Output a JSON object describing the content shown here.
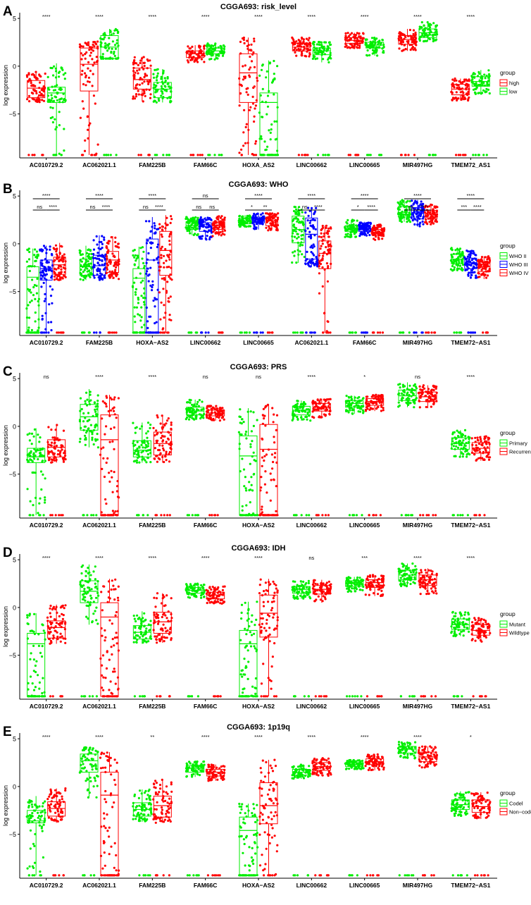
{
  "chart_data": [
    {
      "type": "box",
      "panel_letter": "A",
      "title": "CGGA693: risk_level",
      "ylabel": "log expression",
      "yticks": [
        5,
        0,
        -5
      ],
      "ylim": [
        -9.6,
        5.6
      ],
      "legend_title": "group",
      "groups": [
        {
          "name": "high",
          "color": "#ff0000"
        },
        {
          "name": "low",
          "color": "#00ee00"
        }
      ],
      "categories": [
        "AC010729.2",
        "AC062021.1",
        "FAM225B",
        "FAM66C",
        "HOXA_AS2",
        "LINC00662",
        "LINC00665",
        "MIR497HG",
        "TMEM72_AS1"
      ],
      "significance": [
        "****",
        "****",
        "****",
        "****",
        "****",
        "****",
        "****",
        "****",
        "****"
      ],
      "series": [
        {
          "name": "high",
          "stats": [
            [
              -3.8,
              -3.3,
              -2.3,
              -1.5,
              -0.6
            ],
            [
              -9.3,
              -2.6,
              0.2,
              1.9,
              2.6
            ],
            [
              -3.7,
              -2.4,
              -1.4,
              -0.2,
              1.0
            ],
            [
              0.4,
              0.9,
              1.3,
              1.6,
              2.2
            ],
            [
              -9.3,
              -3.8,
              -0.7,
              1.3,
              3.0
            ],
            [
              1.0,
              1.6,
              2.0,
              2.4,
              3.0
            ],
            [
              1.9,
              2.4,
              2.7,
              3.0,
              3.5
            ],
            [
              1.6,
              2.3,
              2.8,
              3.2,
              3.9
            ],
            [
              -3.6,
              -3.0,
              -2.4,
              -1.9,
              -1.3
            ]
          ]
        },
        {
          "name": "low",
          "stats": [
            [
              -9.3,
              -3.8,
              -2.8,
              -2.2,
              0.3
            ],
            [
              0.8,
              0.8,
              2.0,
              3.2,
              3.9
            ],
            [
              -3.8,
              -3.3,
              -2.4,
              -1.7,
              -0.3
            ],
            [
              0.7,
              1.3,
              1.6,
              1.9,
              2.4
            ],
            [
              -9.3,
              -9.3,
              -3.8,
              -2.8,
              0.6
            ],
            [
              0.4,
              1.2,
              1.6,
              1.9,
              2.6
            ],
            [
              1.1,
              1.9,
              2.2,
              2.5,
              3.0
            ],
            [
              2.6,
              3.0,
              3.5,
              3.9,
              4.6
            ],
            [
              -3.0,
              -2.1,
              -1.6,
              -1.1,
              -0.4
            ]
          ]
        }
      ]
    },
    {
      "type": "box",
      "panel_letter": "B",
      "title": "CGGA693: WHO",
      "ylabel": "log expression",
      "yticks": [
        5,
        0,
        -5
      ],
      "ylim": [
        -9.6,
        5.6
      ],
      "legend_title": "group",
      "groups": [
        {
          "name": "WHO II",
          "color": "#00ee00"
        },
        {
          "name": "WHO III",
          "color": "#0000ff"
        },
        {
          "name": "WHO IV",
          "color": "#ff0000"
        }
      ],
      "categories": [
        "AC010729.2",
        "FAM225B",
        "HOXA−AS2",
        "LINC00662",
        "LINC00665",
        "AC062021.1",
        "FAM66C",
        "MIR497HG",
        "TMEM72−AS1"
      ],
      "brackets": [
        {
          "ab": "ns",
          "bc": "****",
          "ac": "****"
        },
        {
          "ab": "ns",
          "bc": "****",
          "ac": "****"
        },
        {
          "ab": "ns",
          "bc": "****",
          "ac": "****"
        },
        {
          "ab": "ns",
          "bc": "ns",
          "ac": "ns"
        },
        {
          "ab": "*",
          "bc": "**",
          "ac": "****"
        },
        {
          "ab": "ns",
          "bc": "****",
          "ac": "****"
        },
        {
          "ab": "*",
          "bc": "****",
          "ac": "****"
        },
        {
          "ab": "ns",
          "bc": "****",
          "ac": "****"
        },
        {
          "ab": "***",
          "bc": "****",
          "ac": "****"
        }
      ],
      "series": [
        {
          "name": "WHO II",
          "stats": [
            [
              -9.3,
              -9.3,
              -3.5,
              -2.4,
              -0.5
            ],
            [
              -3.8,
              -3.3,
              -2.4,
              -1.6,
              -0.2
            ],
            [
              -9.3,
              -9.3,
              -3.6,
              -2.6,
              -0.3
            ],
            [
              0.9,
              1.5,
              1.9,
              2.3,
              2.8
            ],
            [
              1.8,
              2.1,
              2.4,
              2.7,
              3.0
            ],
            [
              -2.0,
              0.1,
              1.5,
              2.9,
              3.9
            ],
            [
              0.7,
              1.3,
              1.6,
              1.9,
              2.5
            ],
            [
              2.3,
              2.8,
              3.3,
              3.9,
              4.6
            ],
            [
              -2.8,
              -2.1,
              -1.6,
              -1.1,
              -0.4
            ]
          ]
        },
        {
          "name": "WHO III",
          "stats": [
            [
              -9.3,
              -3.8,
              -2.6,
              -1.7,
              -0.2
            ],
            [
              -3.8,
              -3.3,
              -2.3,
              -1.2,
              0.9
            ],
            [
              -9.3,
              -9.3,
              -1.7,
              0.5,
              2.8
            ],
            [
              0.4,
              1.3,
              1.8,
              2.2,
              2.8
            ],
            [
              1.5,
              2.2,
              2.5,
              2.8,
              3.2
            ],
            [
              -2.4,
              -1.6,
              1.0,
              2.7,
              3.8
            ],
            [
              0.8,
              1.3,
              1.6,
              1.9,
              2.3
            ],
            [
              1.8,
              2.6,
              3.2,
              3.8,
              4.6
            ],
            [
              -3.6,
              -2.6,
              -2.0,
              -1.5,
              -0.7
            ]
          ]
        },
        {
          "name": "WHO IV",
          "stats": [
            [
              -3.8,
              -3.2,
              -2.2,
              -1.4,
              0.1
            ],
            [
              -3.7,
              -3.0,
              -1.7,
              -0.8,
              0.8
            ],
            [
              -9.3,
              -3.3,
              -0.7,
              1.3,
              3.0
            ],
            [
              0.8,
              1.5,
              1.9,
              2.3,
              2.9
            ],
            [
              1.4,
              1.9,
              2.4,
              2.8,
              3.2
            ],
            [
              -9.3,
              -2.6,
              -1.0,
              0.3,
              1.9
            ],
            [
              0.4,
              0.9,
              1.2,
              1.5,
              2.0
            ],
            [
              2.0,
              2.6,
              3.1,
              3.5,
              4.1
            ],
            [
              -3.7,
              -2.9,
              -2.4,
              -1.9,
              -1.3
            ]
          ]
        }
      ]
    },
    {
      "type": "box",
      "panel_letter": "C",
      "title": "CGGA693: PRS",
      "ylabel": "log expression",
      "yticks": [
        5,
        0,
        -5
      ],
      "ylim": [
        -9.6,
        5.6
      ],
      "legend_title": "group",
      "groups": [
        {
          "name": "Primary",
          "color": "#00ee00"
        },
        {
          "name": "Recurrent",
          "color": "#ff0000"
        }
      ],
      "categories": [
        "AC010729.2",
        "AC062021.1",
        "FAM225B",
        "FAM66C",
        "HOXA−AS2",
        "LINC00662",
        "LINC00665",
        "MIR497HG",
        "TMEM72−AS1"
      ],
      "significance": [
        "ns",
        "****",
        "****",
        "ns",
        "ns",
        "****",
        "*",
        "ns",
        "****"
      ],
      "series": [
        {
          "name": "Primary",
          "stats": [
            [
              -9.3,
              -3.8,
              -3.2,
              -2.3,
              -0.2
            ],
            [
              -2.2,
              -0.4,
              1.0,
              2.3,
              3.9
            ],
            [
              -3.8,
              -3.2,
              -2.5,
              -1.5,
              0.4
            ],
            [
              0.7,
              1.2,
              1.6,
              2.0,
              2.8
            ],
            [
              -9.3,
              -9.3,
              -3.1,
              -1.0,
              1.9
            ],
            [
              0.6,
              1.2,
              1.7,
              2.1,
              2.7
            ],
            [
              1.3,
              2.0,
              2.4,
              2.7,
              3.2
            ],
            [
              2.0,
              2.7,
              3.2,
              3.8,
              4.6
            ],
            [
              -3.2,
              -2.4,
              -1.8,
              -1.2,
              -0.4
            ]
          ]
        },
        {
          "name": "Recurrent",
          "stats": [
            [
              -3.8,
              -3.2,
              -2.2,
              -1.4,
              0.2
            ],
            [
              -9.3,
              -9.3,
              -1.4,
              1.2,
              3.3
            ],
            [
              -3.8,
              -3.0,
              -1.8,
              -0.6,
              1.2
            ],
            [
              0.6,
              1.1,
              1.4,
              1.7,
              2.2
            ],
            [
              -9.3,
              -9.3,
              -2.4,
              0.2,
              2.3
            ],
            [
              0.9,
              1.6,
              2.0,
              2.4,
              2.9
            ],
            [
              1.6,
              2.2,
              2.6,
              2.9,
              3.3
            ],
            [
              1.9,
              2.6,
              3.1,
              3.6,
              4.3
            ],
            [
              -3.6,
              -2.8,
              -2.3,
              -1.7,
              -1.0
            ]
          ]
        }
      ]
    },
    {
      "type": "box",
      "panel_letter": "D",
      "title": "CGGA693: IDH",
      "ylabel": "log expression",
      "yticks": [
        5,
        0,
        -5
      ],
      "ylim": [
        -9.6,
        5.6
      ],
      "legend_title": "group",
      "groups": [
        {
          "name": "Mutant",
          "color": "#00ee00"
        },
        {
          "name": "Wildtype",
          "color": "#ff0000"
        }
      ],
      "categories": [
        "AC010729.2",
        "AC062021.1",
        "FAM225B",
        "FAM66C",
        "HOXA−AS2",
        "LINC00662",
        "LINC00665",
        "MIR497HG",
        "TMEM72−AS1"
      ],
      "significance": [
        "****",
        "****",
        "****",
        "****",
        "****",
        "ns",
        "***",
        "****",
        "****"
      ],
      "series": [
        {
          "name": "Mutant",
          "stats": [
            [
              -9.3,
              -9.3,
              -3.8,
              -2.7,
              -0.6
            ],
            [
              -1.8,
              0.5,
              1.7,
              2.8,
              4.5
            ],
            [
              -3.8,
              -3.3,
              -2.6,
              -1.9,
              -0.4
            ],
            [
              1.0,
              1.5,
              1.8,
              2.1,
              2.6
            ],
            [
              -9.3,
              -9.3,
              -3.8,
              -2.4,
              0.6
            ],
            [
              0.9,
              1.5,
              1.9,
              2.2,
              2.8
            ],
            [
              1.6,
              2.2,
              2.5,
              2.8,
              3.2
            ],
            [
              2.2,
              2.9,
              3.4,
              3.9,
              4.6
            ],
            [
              -3.0,
              -2.3,
              -1.8,
              -1.2,
              -0.4
            ]
          ]
        },
        {
          "name": "Wildtype",
          "stats": [
            [
              -3.8,
              -3.2,
              -2.1,
              -1.4,
              0.3
            ],
            [
              -9.3,
              -9.3,
              -1.0,
              0.5,
              3.0
            ],
            [
              -3.7,
              -2.7,
              -1.5,
              -0.5,
              1.5
            ],
            [
              0.4,
              0.9,
              1.3,
              1.6,
              2.2
            ],
            [
              -9.3,
              -3.1,
              -0.6,
              1.3,
              3.0
            ],
            [
              0.5,
              1.4,
              1.9,
              2.3,
              2.9
            ],
            [
              1.2,
              2.1,
              2.6,
              2.9,
              3.4
            ],
            [
              1.4,
              2.3,
              2.9,
              3.4,
              4.1
            ],
            [
              -3.6,
              -2.9,
              -2.4,
              -1.8,
              -1.1
            ]
          ]
        }
      ]
    },
    {
      "type": "box",
      "panel_letter": "E",
      "title": "CGGA693: 1p19q",
      "ylabel": "log expression",
      "yticks": [
        5,
        0,
        -5
      ],
      "ylim": [
        -9.6,
        5.6
      ],
      "legend_title": "group",
      "groups": [
        {
          "name": "Codel",
          "color": "#00ee00"
        },
        {
          "name": "Non−codel",
          "color": "#ff0000"
        }
      ],
      "categories": [
        "AC010729.2",
        "AC062021.1",
        "FAM225B",
        "FAM66C",
        "HOXA−AS2",
        "LINC00662",
        "LINC00665",
        "MIR497HG",
        "TMEM72−AS1"
      ],
      "significance": [
        "****",
        "****",
        "**",
        "****",
        "****",
        "****",
        "****",
        "****",
        "*"
      ],
      "series": [
        {
          "name": "Codel",
          "stats": [
            [
              -9.3,
              -3.8,
              -3.6,
              -2.5,
              -1.0
            ],
            [
              -1.2,
              1.5,
              2.7,
              3.4,
              4.1
            ],
            [
              -3.7,
              -3.1,
              -2.4,
              -1.7,
              -0.3
            ],
            [
              1.0,
              1.5,
              1.9,
              2.2,
              2.7
            ],
            [
              -9.3,
              -9.3,
              -4.6,
              -3.2,
              -1.8
            ],
            [
              0.8,
              1.2,
              1.5,
              1.8,
              2.3
            ],
            [
              1.8,
              2.1,
              2.3,
              2.5,
              2.8
            ],
            [
              2.9,
              3.5,
              3.9,
              4.2,
              4.7
            ],
            [
              -3.1,
              -2.4,
              -1.9,
              -1.4,
              -0.5
            ]
          ]
        },
        {
          "name": "Non−codel",
          "stats": [
            [
              -3.8,
              -3.1,
              -2.3,
              -1.6,
              -0.2
            ],
            [
              -9.3,
              -9.3,
              -0.9,
              1.5,
              3.6
            ],
            [
              -3.8,
              -3.2,
              -2.0,
              -1.0,
              0.7
            ],
            [
              0.6,
              1.1,
              1.5,
              1.8,
              2.3
            ],
            [
              -9.3,
              -3.9,
              -2.0,
              0.4,
              2.8
            ],
            [
              1.1,
              1.7,
              2.1,
              2.5,
              3.0
            ],
            [
              1.7,
              2.3,
              2.6,
              2.9,
              3.4
            ],
            [
              2.0,
              2.6,
              3.1,
              3.6,
              4.2
            ],
            [
              -3.4,
              -2.7,
              -2.1,
              -1.4,
              -0.6
            ]
          ]
        }
      ]
    }
  ]
}
